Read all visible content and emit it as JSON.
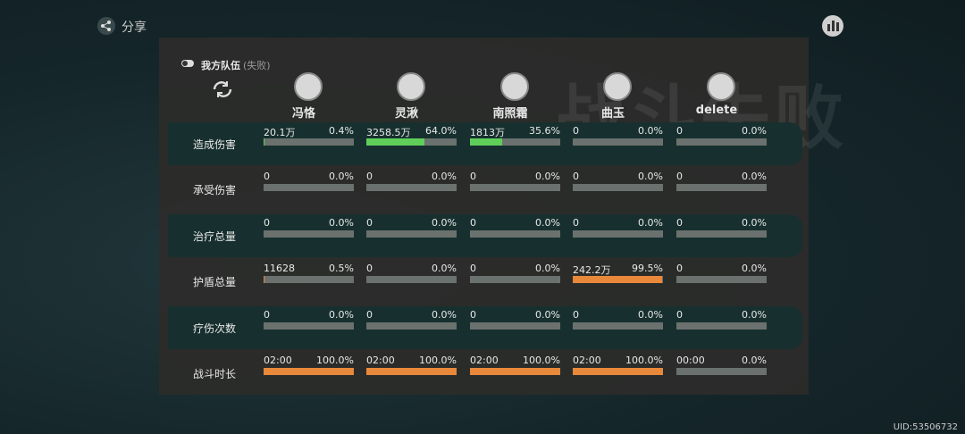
{
  "share": "分享",
  "bg_title": "战斗失败",
  "team": {
    "title": "我方队伍",
    "status": "(失败)"
  },
  "members": [
    "冯恪",
    "灵湫",
    "南照霜",
    "曲玉",
    "delete"
  ],
  "rows": [
    {
      "label": "造成伤害",
      "color": "#5fcf5a",
      "amounts": [
        "20.1万",
        "3258.5万",
        "1813万",
        "0",
        "0"
      ],
      "values": [
        0.4,
        64.0,
        35.6,
        0,
        0
      ],
      "value_labels": [
        "0.4%",
        "64.0%",
        "35.6%",
        "0.0%",
        "0.0%"
      ]
    },
    {
      "label": "承受伤害",
      "color": "#e8883a",
      "amounts": [
        "0",
        "0",
        "0",
        "0",
        "0"
      ],
      "values": [
        0,
        0,
        0,
        0,
        0
      ],
      "value_labels": [
        "0.0%",
        "0.0%",
        "0.0%",
        "0.0%",
        "0.0%"
      ]
    },
    {
      "label": "治疗总量",
      "color": "#5fcf5a",
      "amounts": [
        "0",
        "0",
        "0",
        "0",
        "0"
      ],
      "values": [
        0,
        0,
        0,
        0,
        0
      ],
      "value_labels": [
        "0.0%",
        "0.0%",
        "0.0%",
        "0.0%",
        "0.0%"
      ]
    },
    {
      "label": "护盾总量",
      "color": "#e8883a",
      "amounts": [
        "11628",
        "0",
        "0",
        "242.2万",
        "0"
      ],
      "values": [
        0.5,
        0,
        0,
        99.5,
        0
      ],
      "value_labels": [
        "0.5%",
        "0.0%",
        "0.0%",
        "99.5%",
        "0.0%"
      ]
    },
    {
      "label": "疗伤次数",
      "color": "#e8883a",
      "amounts": [
        "0",
        "0",
        "0",
        "0",
        "0"
      ],
      "values": [
        0,
        0,
        0,
        0,
        0
      ],
      "value_labels": [
        "0.0%",
        "0.0%",
        "0.0%",
        "0.0%",
        "0.0%"
      ]
    },
    {
      "label": "战斗时长",
      "color": "#e8883a",
      "amounts": [
        "02:00",
        "02:00",
        "02:00",
        "02:00",
        "00:00"
      ],
      "values": [
        100.0,
        100.0,
        100.0,
        100.0,
        0
      ],
      "value_labels": [
        "100.0%",
        "100.0%",
        "100.0%",
        "100.0%",
        "0.0%"
      ]
    }
  ],
  "uid": "UID:53506732"
}
